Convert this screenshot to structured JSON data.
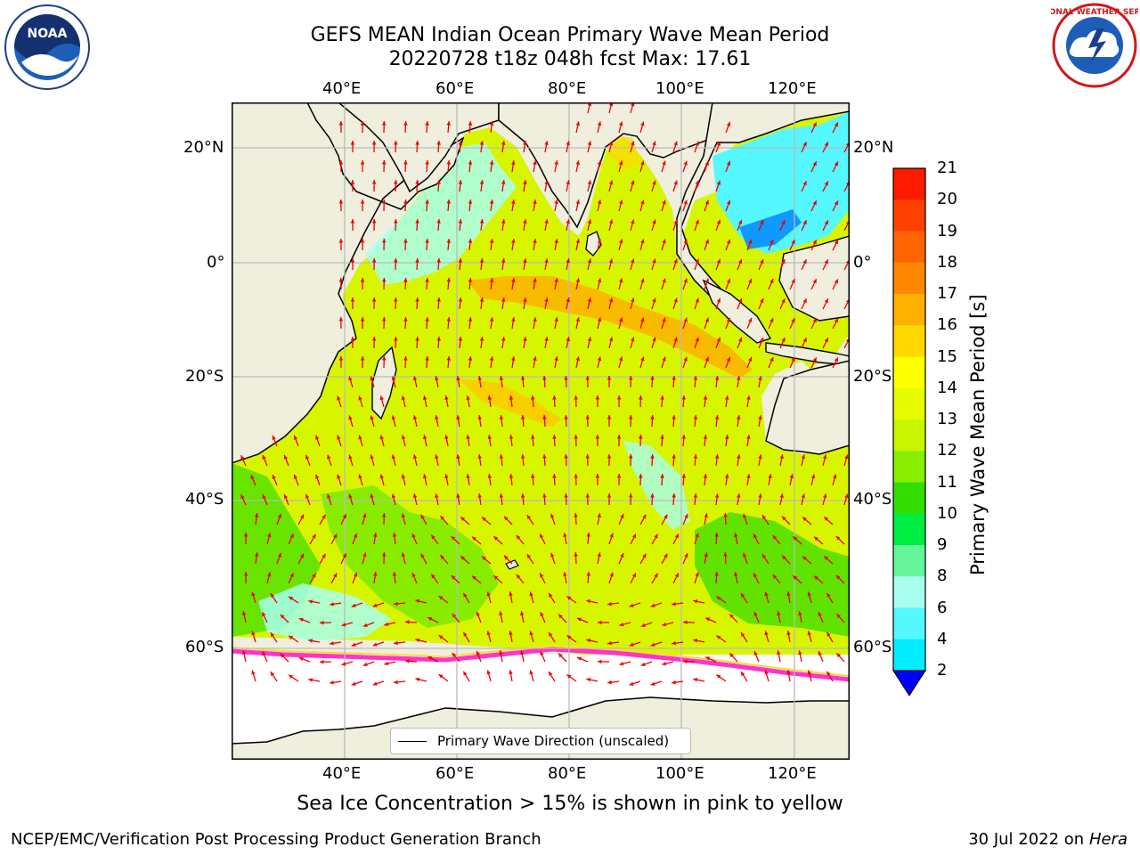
{
  "title": {
    "line1": "GEFS MEAN Indian Ocean Primary Wave Mean Period",
    "line2": "20220728 t18z 048h fcst   Max: 17.61"
  },
  "map": {
    "lon_ticks": [
      "40°E",
      "60°E",
      "80°E",
      "100°E",
      "120°E"
    ],
    "lat_ticks_left": [
      "20°N",
      "0°",
      "20°S",
      "40°S",
      "60°S"
    ],
    "lat_ticks_right": [
      "20°N",
      "0°",
      "20°S",
      "40°S",
      "60°S"
    ],
    "lon_range": [
      20,
      130
    ],
    "lat_range": [
      -76,
      28
    ],
    "colors": {
      "land": "#f0eedd",
      "ice_free_no_data": "#ffffff",
      "grid": "#bbbbbb",
      "arrow": "#ee0000",
      "coast": "#000000"
    }
  },
  "colorbar": {
    "label": "Primary Wave Mean Period [s]",
    "ticks": [
      "21",
      "20",
      "19",
      "18",
      "17",
      "16",
      "15",
      "14",
      "13",
      "12",
      "11",
      "10",
      "9",
      "8",
      "6",
      "4",
      "2"
    ],
    "colors_top_to_bottom": [
      "#ff1a00",
      "#ff4000",
      "#ff6400",
      "#ff8800",
      "#ffb000",
      "#ffd800",
      "#ffff00",
      "#e8fc00",
      "#c8f600",
      "#88ee00",
      "#33dd00",
      "#00ee44",
      "#66f59a",
      "#a8fff0",
      "#55f8ff",
      "#00eeff",
      "#0080ff"
    ],
    "under_color": "#0000ff"
  },
  "legend": {
    "text": "Primary Wave Direction (unscaled)"
  },
  "footer": {
    "note": "Sea Ice Concentration > 15% is shown in pink to yellow",
    "credit_left": "NCEP/EMC/Verification Post Processing Product Generation Branch",
    "date": "30 Jul 2022 on ",
    "machine": "Hera"
  },
  "logos": {
    "noaa": {
      "text": "NOAA",
      "icon": "noaa-logo-icon"
    },
    "nws": {
      "text": "NATIONAL WEATHER SERVICE",
      "icon": "nws-logo-icon"
    }
  }
}
